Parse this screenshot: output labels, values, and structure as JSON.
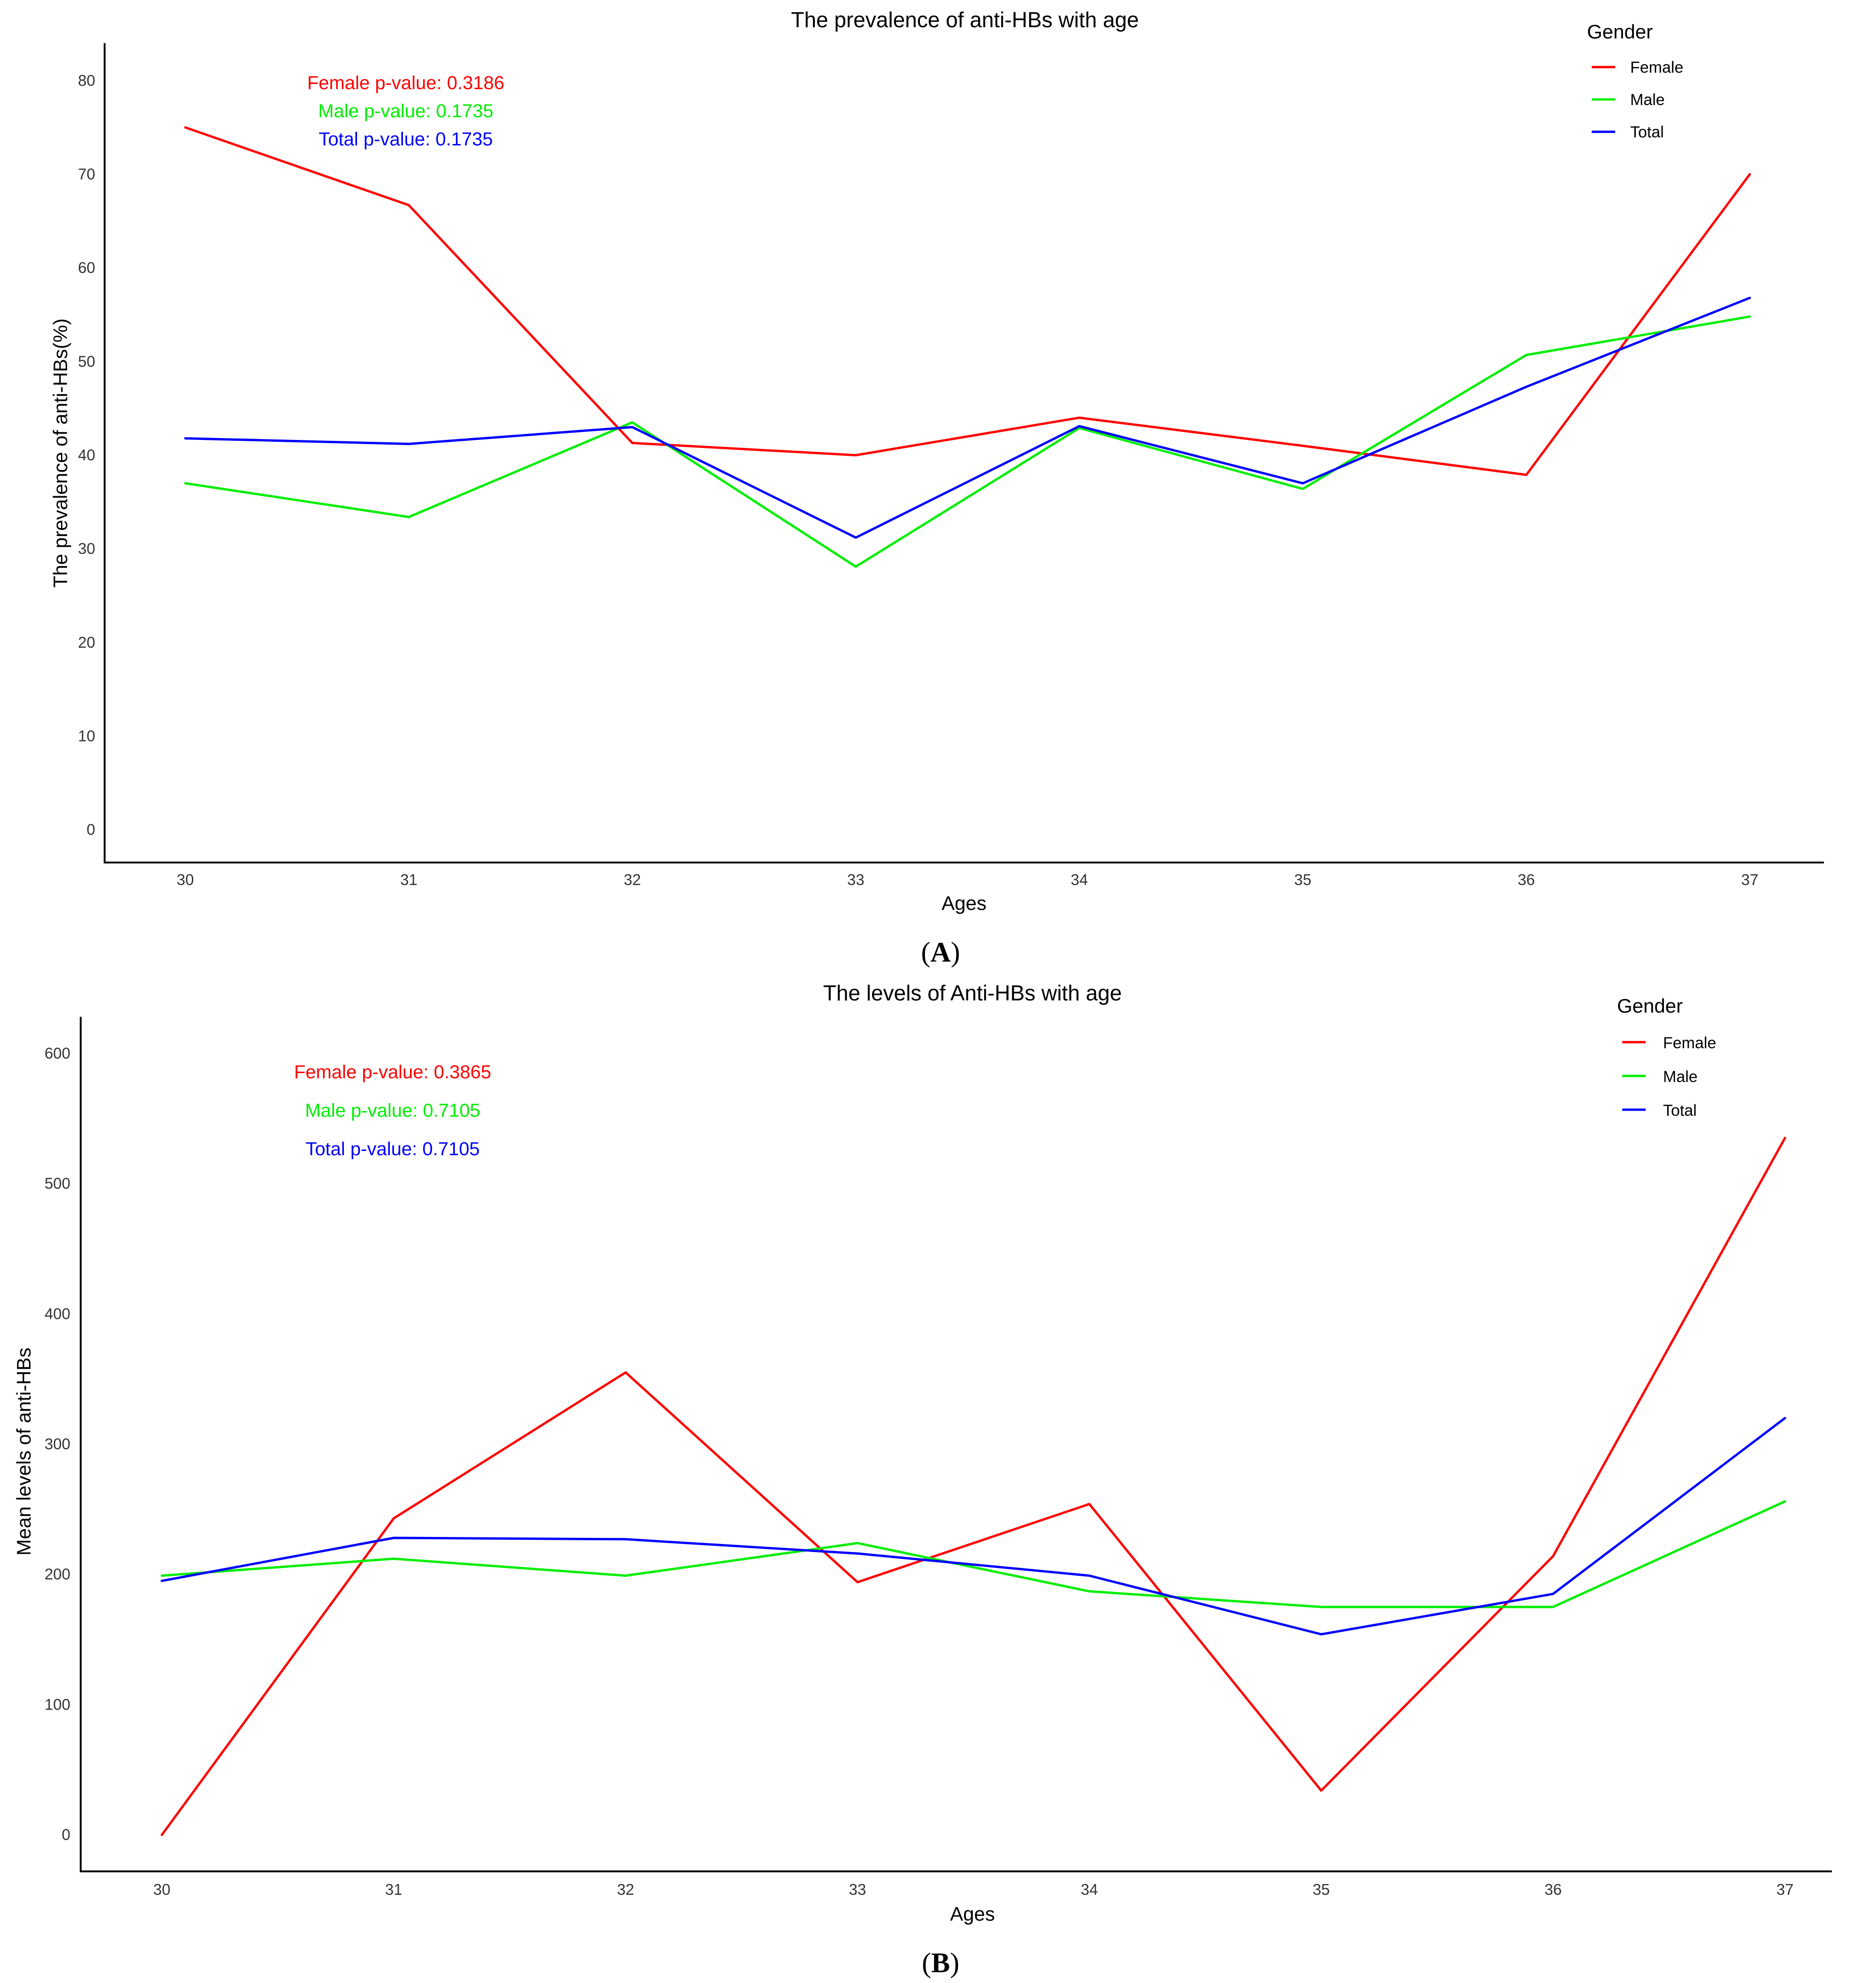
{
  "chart_data": [
    {
      "type": "line",
      "panel_label": "A",
      "title": "The prevalence of anti-HBs with age",
      "xlabel": "Ages",
      "ylabel": "The prevalence of anti-HBs(%)",
      "categories": [
        "30",
        "31",
        "32",
        "33",
        "34",
        "35",
        "36",
        "37"
      ],
      "yticks": [
        "0",
        "10",
        "20",
        "30",
        "40",
        "50",
        "60",
        "70",
        "80"
      ],
      "ylim": [
        -3.5,
        84
      ],
      "grid": false,
      "legend": {
        "title": "Gender",
        "position": "top-right",
        "entries": [
          "Female",
          "Male",
          "Total"
        ]
      },
      "series": [
        {
          "name": "Female",
          "color": "#ff0000",
          "values": [
            75,
            66.7,
            41.3,
            40,
            44,
            41,
            37.9,
            70
          ]
        },
        {
          "name": "Male",
          "color": "#00ee00",
          "values": [
            37,
            33.4,
            43.5,
            28.1,
            42.9,
            36.4,
            50.7,
            54.8
          ]
        },
        {
          "name": "Total",
          "color": "#0000ff",
          "values": [
            41.8,
            41.2,
            43,
            31.2,
            43.1,
            37,
            47.3,
            56.8
          ]
        }
      ],
      "annotations": [
        {
          "text": "Female p-value: 0.3186",
          "color": "#ff0000"
        },
        {
          "text": "Male p-value: 0.1735",
          "color": "#00ee00"
        },
        {
          "text": "Total p-value: 0.1735",
          "color": "#0000ff"
        }
      ]
    },
    {
      "type": "line",
      "panel_label": "B",
      "title": "The levels of Anti-HBs with age",
      "xlabel": "Ages",
      "ylabel": "Mean levels of anti-HBs",
      "categories": [
        "30",
        "31",
        "32",
        "33",
        "34",
        "35",
        "36",
        "37"
      ],
      "yticks": [
        "0",
        "100",
        "200",
        "300",
        "400",
        "500",
        "600"
      ],
      "ylim": [
        -28,
        628
      ],
      "grid": false,
      "legend": {
        "title": "Gender",
        "position": "top-right",
        "entries": [
          "Female",
          "Male",
          "Total"
        ]
      },
      "series": [
        {
          "name": "Female",
          "color": "#ff0000",
          "values": [
            0,
            243,
            355,
            194,
            254,
            34,
            214,
            535
          ]
        },
        {
          "name": "Male",
          "color": "#00ee00",
          "values": [
            199,
            212,
            199,
            224,
            187,
            175,
            175,
            256
          ]
        },
        {
          "name": "Total",
          "color": "#0000ff",
          "values": [
            195,
            228,
            227,
            216,
            199,
            154,
            185,
            320
          ]
        }
      ],
      "annotations": [
        {
          "text": "Female p-value: 0.3865",
          "color": "#ff0000"
        },
        {
          "text": "Male p-value: 0.7105",
          "color": "#00ee00"
        },
        {
          "text": "Total p-value: 0.7105",
          "color": "#0000ff"
        }
      ]
    }
  ]
}
